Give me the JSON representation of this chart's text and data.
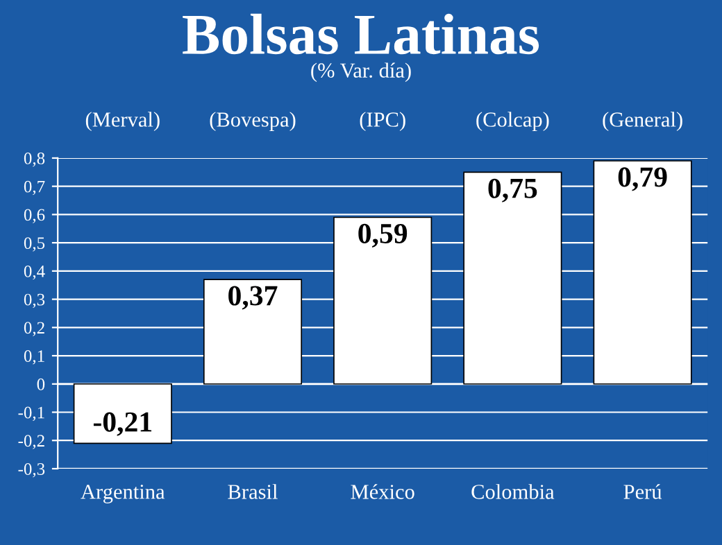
{
  "chart_data": {
    "type": "bar",
    "title": "Bolsas Latinas",
    "subtitle": "(% Var. día)",
    "categories": [
      "Argentina",
      "Brasil",
      "México",
      "Colombia",
      "Perú"
    ],
    "values": [
      -0.21,
      0.37,
      0.59,
      0.75,
      0.79
    ],
    "value_labels": [
      "-0,21",
      "0,37",
      "0,59",
      "0,75",
      "0,79"
    ],
    "color": "#ffffff",
    "annotations": [
      "(Merval)",
      "(Bovespa)",
      "(IPC)",
      "(Colcap)",
      "(General)"
    ],
    "ylim": [
      -0.3,
      0.8
    ],
    "yticks": [
      {
        "value": -0.3,
        "label": "-0,3"
      },
      {
        "value": -0.2,
        "label": "-0,2"
      },
      {
        "value": -0.1,
        "label": "-0,1"
      },
      0,
      {
        "value": 0.1,
        "label": "0,1"
      },
      {
        "value": 0.2,
        "label": "0,2"
      },
      {
        "value": 0.3,
        "label": "0,3"
      },
      {
        "value": 0.4,
        "label": "0,4"
      },
      {
        "value": 0.5,
        "label": "0,5"
      },
      {
        "value": 0.6,
        "label": "0,6"
      },
      {
        "value": 0.7,
        "label": "0,7"
      },
      {
        "value": 0.8,
        "label": "0,8"
      }
    ],
    "grid": "y"
  }
}
